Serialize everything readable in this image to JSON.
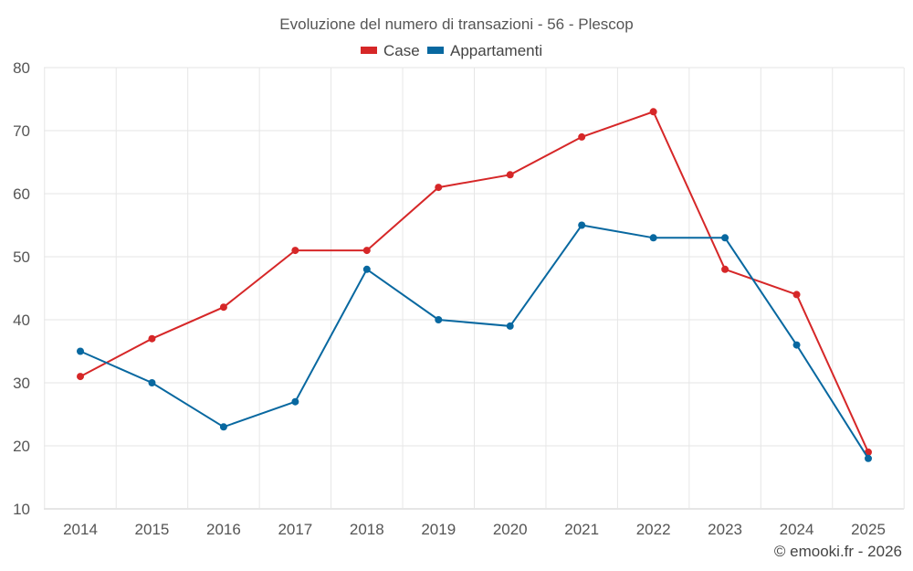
{
  "chart_data": {
    "type": "line",
    "title": "Evoluzione del numero di transazioni - 56 - Plescop",
    "xlabel": "",
    "ylabel": "",
    "categories": [
      "2014",
      "2015",
      "2016",
      "2017",
      "2018",
      "2019",
      "2020",
      "2021",
      "2022",
      "2023",
      "2024",
      "2025"
    ],
    "ylim": [
      10,
      80
    ],
    "yticks": [
      10,
      20,
      30,
      40,
      50,
      60,
      70,
      80
    ],
    "grid": true,
    "legend_position": "top-center",
    "series": [
      {
        "name": "Case",
        "color": "#d62728",
        "values": [
          31,
          37,
          42,
          51,
          51,
          61,
          63,
          69,
          73,
          48,
          44,
          19
        ]
      },
      {
        "name": "Appartamenti",
        "color": "#0868a0",
        "values": [
          35,
          30,
          23,
          27,
          48,
          40,
          39,
          55,
          53,
          53,
          36,
          18
        ]
      }
    ]
  },
  "credit": "© emooki.fr - 2026"
}
